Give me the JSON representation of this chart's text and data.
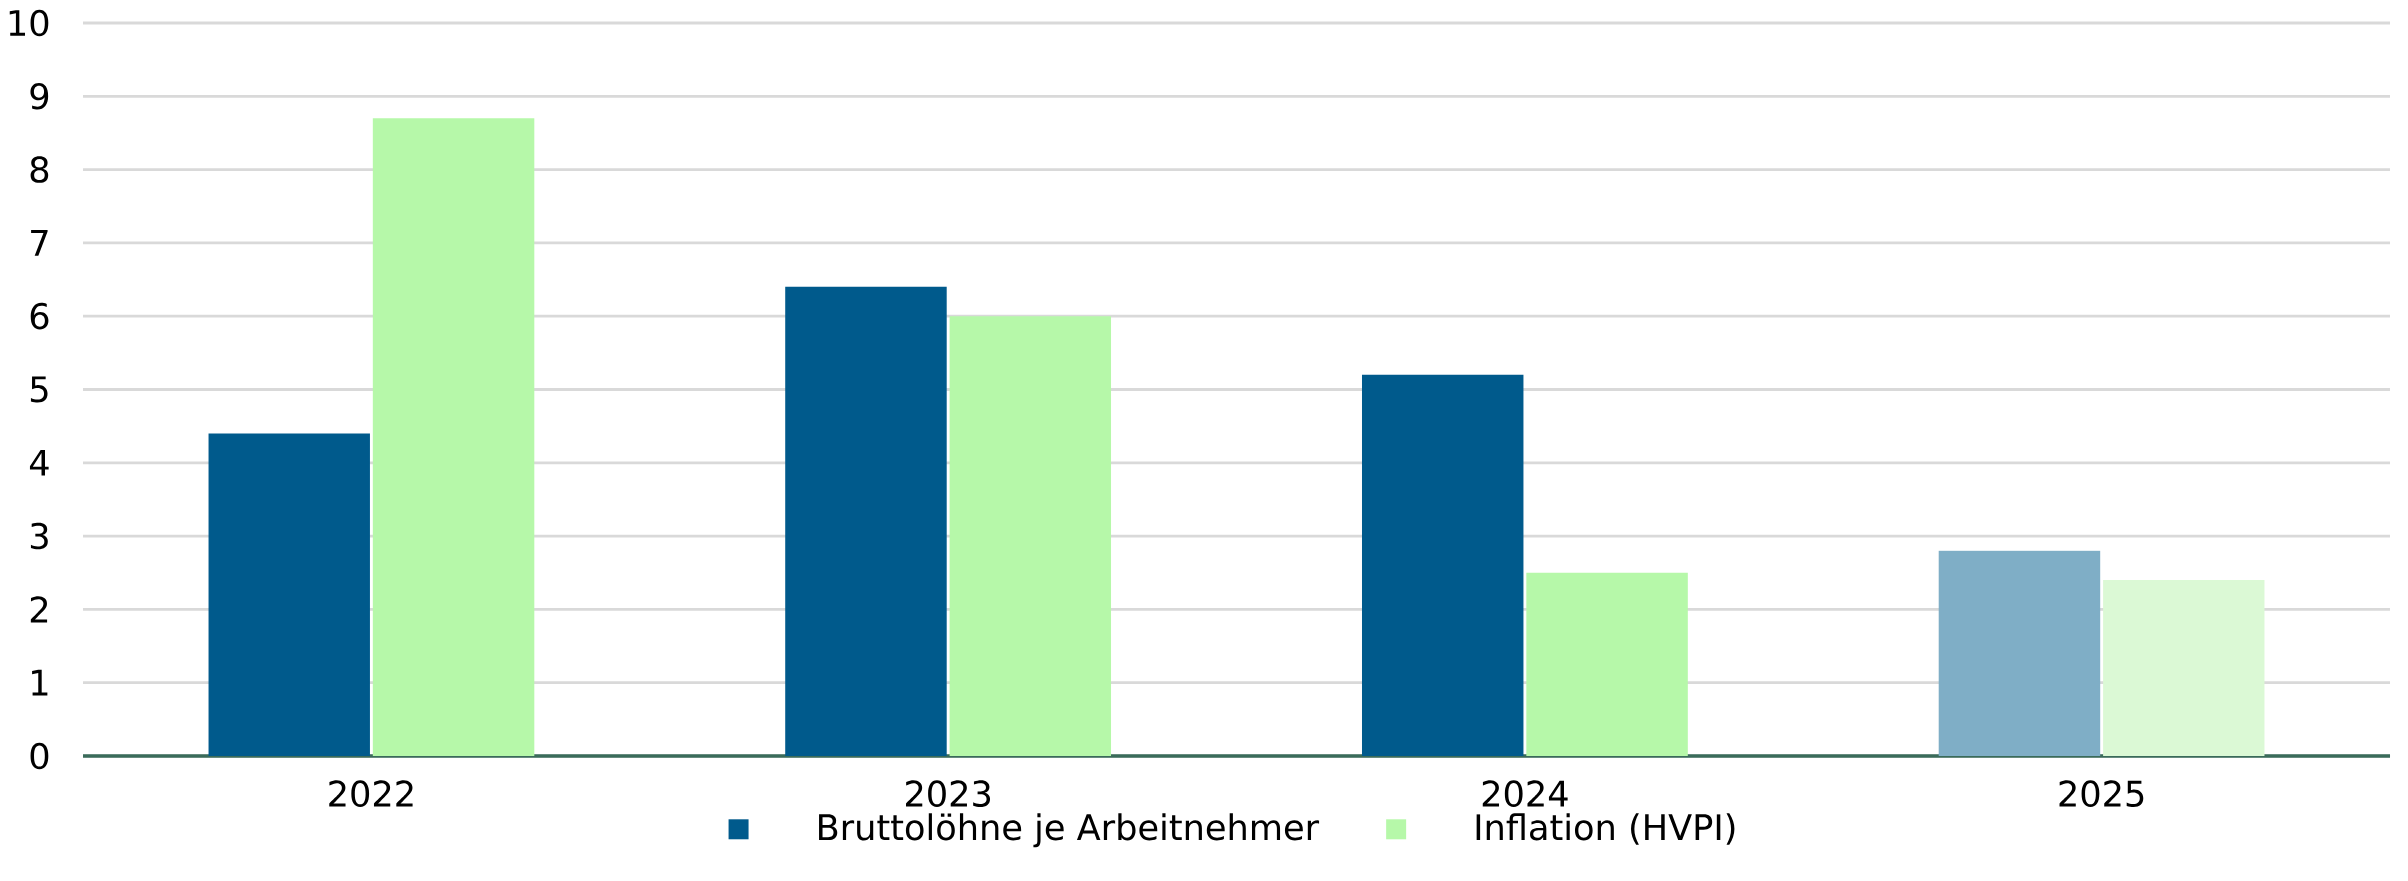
{
  "chart_data": {
    "type": "bar",
    "categories": [
      "2022",
      "2023",
      "2024",
      "2025"
    ],
    "series": [
      {
        "name": "Bruttolöhne je Arbeitnehmer",
        "color": "#005a8c",
        "colors": [
          "#005a8c",
          "#005a8c",
          "#005a8c",
          "#7faec6"
        ],
        "values": [
          4.4,
          6.4,
          5.2,
          2.8
        ]
      },
      {
        "name": "Inflation (HVPI)",
        "color": "#b6f8a9",
        "colors": [
          "#b6f8a9",
          "#b6f8a9",
          "#b6f8a9",
          "#dbf9d5"
        ],
        "values": [
          8.7,
          6.0,
          2.5,
          2.4
        ]
      }
    ],
    "ylim": [
      0,
      10
    ],
    "yticks": [
      0,
      1,
      2,
      3,
      4,
      5,
      6,
      7,
      8,
      9,
      10
    ],
    "grid": "y",
    "legend": "bottom"
  }
}
